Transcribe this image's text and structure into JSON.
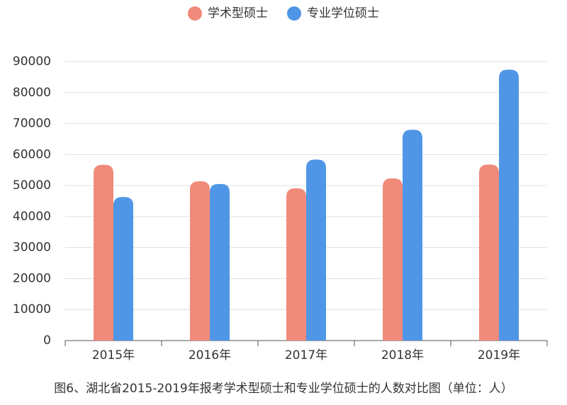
{
  "chart_data": {
    "type": "bar",
    "title": "图6、湖北省2015-2019年报考学术型硕士和专业学位硕士的人数对比图（单位：人）",
    "categories": [
      "2015年",
      "2016年",
      "2017年",
      "2018年",
      "2019年"
    ],
    "series": [
      {
        "name": "学术型硕士",
        "color": "#f08a7a",
        "values": [
          56700,
          51400,
          49100,
          52300,
          56800
        ]
      },
      {
        "name": "专业学位硕士",
        "color": "#4f96e6",
        "values": [
          46300,
          50500,
          58400,
          68000,
          87400
        ]
      }
    ],
    "ylim": [
      0,
      90000
    ],
    "yticks": [
      0,
      10000,
      20000,
      30000,
      40000,
      50000,
      60000,
      70000,
      80000,
      90000
    ],
    "grid": true,
    "legend": "top"
  }
}
